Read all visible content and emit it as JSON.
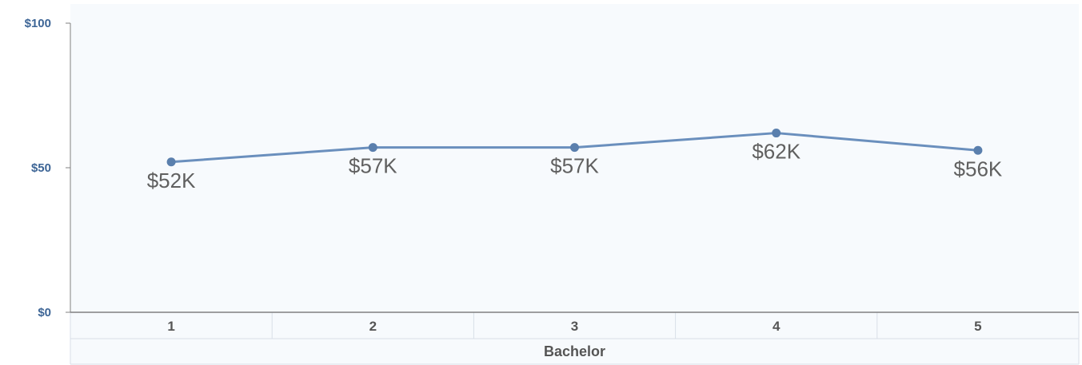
{
  "chart_data": {
    "type": "line",
    "categories": [
      "1",
      "2",
      "3",
      "4",
      "5"
    ],
    "group_label": "Bachelor",
    "series": [
      {
        "values": [
          52,
          57,
          57,
          62,
          56
        ],
        "labels": [
          "$52K",
          "$57K",
          "$57K",
          "$62K",
          "$56K"
        ],
        "color": "#6a8fbd"
      }
    ],
    "ylim": [
      0,
      100
    ],
    "yticks": [
      0,
      50,
      100
    ],
    "ytick_labels": [
      "$0",
      "$50",
      "$100"
    ],
    "grid": false,
    "colors": {
      "plot_background": "#f7fafd",
      "axis": "#808080",
      "ytick_text": "#3d6596",
      "xtick_text": "#555555",
      "marker": "#5a7fad"
    }
  }
}
